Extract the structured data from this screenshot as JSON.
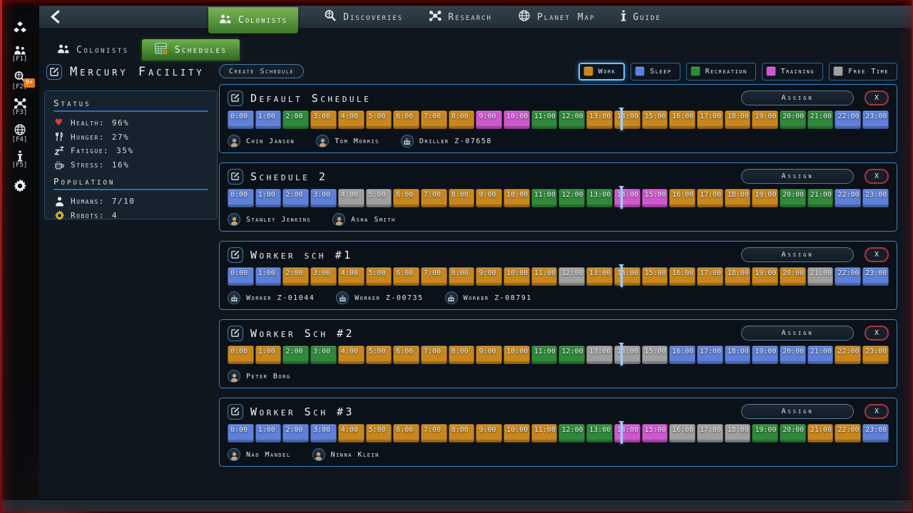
{
  "top_nav": {
    "items": [
      {
        "label": "Colonists",
        "icon": "people",
        "active": true
      },
      {
        "label": "Discoveries",
        "icon": "search",
        "active": false
      },
      {
        "label": "Research",
        "icon": "network",
        "active": false
      },
      {
        "label": "Planet Map",
        "icon": "globe",
        "active": false
      },
      {
        "label": "Guide",
        "icon": "info",
        "active": false
      }
    ]
  },
  "sidebar": [
    {
      "name": "resources",
      "icon": "cubes",
      "hotkey": ""
    },
    {
      "name": "colonists",
      "icon": "people",
      "hotkey": "[F1]"
    },
    {
      "name": "discoveries",
      "icon": "search",
      "hotkey": "[F2]",
      "badge": "9+"
    },
    {
      "name": "research",
      "icon": "network",
      "hotkey": "[F3]"
    },
    {
      "name": "planet-map",
      "icon": "globe",
      "hotkey": "[F4]"
    },
    {
      "name": "guide",
      "icon": "info",
      "hotkey": "[F5]"
    },
    {
      "name": "settings",
      "icon": "gear",
      "hotkey": ""
    }
  ],
  "subtabs": [
    {
      "label": "Colonists",
      "icon": "people",
      "active": false
    },
    {
      "label": "Schedules",
      "icon": "calendar",
      "active": true
    }
  ],
  "facility": {
    "title": "Mercury Facility",
    "status_heading": "Status",
    "status_rows": [
      {
        "icon": "heart",
        "label": "Health:",
        "value": "96%"
      },
      {
        "icon": "utensils",
        "label": "Hunger:",
        "value": "27%"
      },
      {
        "icon": "zzz",
        "label": "Fatigue:",
        "value": "35%"
      },
      {
        "icon": "cup",
        "label": "Stress:",
        "value": "16%"
      }
    ],
    "population_heading": "Population",
    "population_rows": [
      {
        "icon": "person",
        "label": "Humans:",
        "value": "7/10"
      },
      {
        "icon": "robot-gear",
        "label": "Robots:",
        "value": "4"
      }
    ]
  },
  "toolbar": {
    "create_label": "Create Schedule"
  },
  "legend": [
    {
      "label": "Work",
      "key": "work",
      "active": true
    },
    {
      "label": "Sleep",
      "key": "sleep",
      "active": false
    },
    {
      "label": "Recreation",
      "key": "recreation",
      "active": false
    },
    {
      "label": "Training",
      "key": "training",
      "active": false
    },
    {
      "label": "Free Time",
      "key": "free",
      "active": false
    }
  ],
  "activity_colors": {
    "work": "#c8871e",
    "sleep": "#5e80d8",
    "recreation": "#30893a",
    "training": "#cf58cf",
    "free": "#9f9f9f"
  },
  "hours": [
    "0:00",
    "1:00",
    "2:00",
    "3:00",
    "4:00",
    "5:00",
    "6:00",
    "7:00",
    "8:00",
    "9:00",
    "10:00",
    "11:00",
    "12:00",
    "13:00",
    "14:00",
    "15:00",
    "16:00",
    "17:00",
    "18:00",
    "19:00",
    "20:00",
    "21:00",
    "22:00",
    "23:00"
  ],
  "buttons": {
    "assign": "Assign",
    "delete": "X"
  },
  "time_marker_pct": 59.4,
  "schedules": [
    {
      "title": "Default Schedule",
      "blocks": [
        "sleep",
        "sleep",
        "recreation",
        "work",
        "work",
        "work",
        "work",
        "work",
        "work",
        "training",
        "training",
        "recreation",
        "recreation",
        "work",
        "work",
        "work",
        "work",
        "work",
        "work",
        "work",
        "recreation",
        "recreation",
        "sleep",
        "sleep"
      ],
      "members": [
        {
          "name": "Chin Jansen",
          "type": "human"
        },
        {
          "name": "Tom Morris",
          "type": "human"
        },
        {
          "name": "Driller Z-07658",
          "type": "robot"
        }
      ]
    },
    {
      "title": "Schedule 2",
      "blocks": [
        "sleep",
        "sleep",
        "sleep",
        "sleep",
        "free",
        "free",
        "work",
        "work",
        "work",
        "work",
        "work",
        "recreation",
        "recreation",
        "recreation",
        "training",
        "training",
        "work",
        "work",
        "work",
        "work",
        "recreation",
        "recreation",
        "sleep",
        "sleep"
      ],
      "members": [
        {
          "name": "Stanley Jenkins",
          "type": "human"
        },
        {
          "name": "Asha Smith",
          "type": "human"
        }
      ]
    },
    {
      "title": "Worker sch #1",
      "blocks": [
        "sleep",
        "sleep",
        "work",
        "work",
        "work",
        "work",
        "work",
        "work",
        "work",
        "work",
        "work",
        "work",
        "free",
        "work",
        "work",
        "work",
        "work",
        "work",
        "work",
        "work",
        "work",
        "free",
        "sleep",
        "sleep"
      ],
      "members": [
        {
          "name": "Worker Z-01044",
          "type": "robot"
        },
        {
          "name": "Worker Z-00735",
          "type": "robot"
        },
        {
          "name": "Worker Z-08791",
          "type": "robot"
        }
      ]
    },
    {
      "title": "Worker Sch #2",
      "blocks": [
        "work",
        "work",
        "recreation",
        "recreation",
        "work",
        "work",
        "work",
        "work",
        "work",
        "work",
        "work",
        "recreation",
        "recreation",
        "free",
        "free",
        "free",
        "sleep",
        "sleep",
        "sleep",
        "sleep",
        "sleep",
        "sleep",
        "work",
        "work"
      ],
      "members": [
        {
          "name": "Peter Borg",
          "type": "human"
        }
      ]
    },
    {
      "title": "Worker Sch #3",
      "blocks": [
        "sleep",
        "sleep",
        "sleep",
        "sleep",
        "work",
        "work",
        "work",
        "work",
        "work",
        "work",
        "work",
        "work",
        "recreation",
        "recreation",
        "training",
        "training",
        "free",
        "free",
        "free",
        "recreation",
        "recreation",
        "work",
        "work",
        "sleep"
      ],
      "members": [
        {
          "name": "Nao Mandel",
          "type": "human"
        },
        {
          "name": "Ninna Klein",
          "type": "human"
        }
      ]
    }
  ]
}
